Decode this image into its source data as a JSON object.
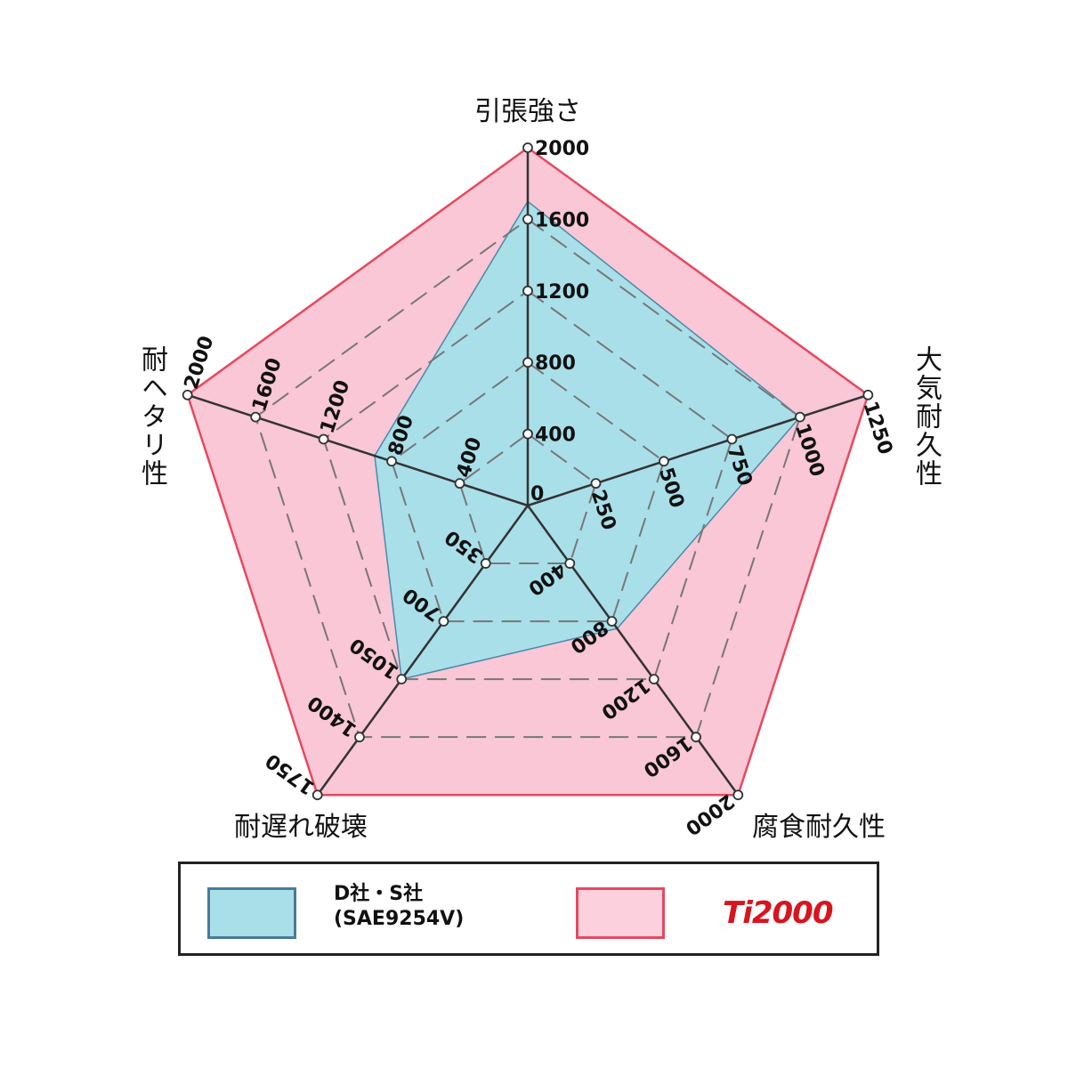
{
  "chart_data": {
    "type": "radar",
    "axes": [
      {
        "label": "引張強さ",
        "ticks": [
          "0",
          "400",
          "800",
          "1200",
          "1600",
          "2000"
        ],
        "max": 2000
      },
      {
        "label": "大気耐久性",
        "ticks": [
          "250",
          "500",
          "750",
          "1000",
          "1250"
        ],
        "max": 1250
      },
      {
        "label": "腐食耐久性",
        "ticks": [
          "400",
          "800",
          "1200",
          "1600",
          "2000"
        ],
        "max": 2000
      },
      {
        "label": "耐遅れ破壊",
        "ticks": [
          "350",
          "700",
          "1050",
          "1400",
          "1750"
        ],
        "max": 1750
      },
      {
        "label": "耐ヘタリ性",
        "ticks": [
          "400",
          "800",
          "1200",
          "1600",
          "2000"
        ],
        "max": 2000
      }
    ],
    "series": [
      {
        "name": "Ti2000",
        "values": [
          2000,
          1250,
          2000,
          1750,
          2000
        ],
        "color": "#f9c7d5",
        "stroke": "#e8485e"
      },
      {
        "name": "D社・S社 (SAE9254V)",
        "values": [
          1700,
          1000,
          850,
          1050,
          900
        ],
        "color": "#a9dfe9",
        "stroke": "#4a8aa8"
      }
    ],
    "grid": "dashed"
  },
  "legend": {
    "series1_line1": "D社・S社",
    "series1_line2": "(SAE9254V)",
    "series2_logo": "Ti2000"
  }
}
